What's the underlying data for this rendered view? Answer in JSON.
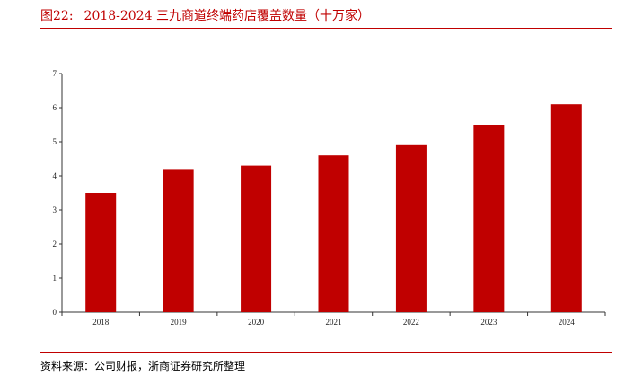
{
  "header": {
    "figure_label": "图22:",
    "title": "2018-2024 三九商道终端药店覆盖数量（十万家）"
  },
  "footer": {
    "source": "资料来源：公司财报，浙商证券研究所整理"
  },
  "colors": {
    "bar": "#c00000",
    "accent": "#c00000"
  },
  "chart_data": {
    "type": "bar",
    "title": "2018-2024 三九商道终端药店覆盖数量（十万家）",
    "categories": [
      "2018",
      "2019",
      "2020",
      "2021",
      "2022",
      "2023",
      "2024"
    ],
    "values": [
      3.5,
      4.2,
      4.3,
      4.6,
      4.9,
      5.5,
      6.1
    ],
    "yticks": [
      "0",
      "1",
      "2",
      "3",
      "4",
      "5",
      "6",
      "7"
    ],
    "ylim": [
      0,
      7
    ],
    "xlabel": "",
    "ylabel": "",
    "grid": false
  }
}
